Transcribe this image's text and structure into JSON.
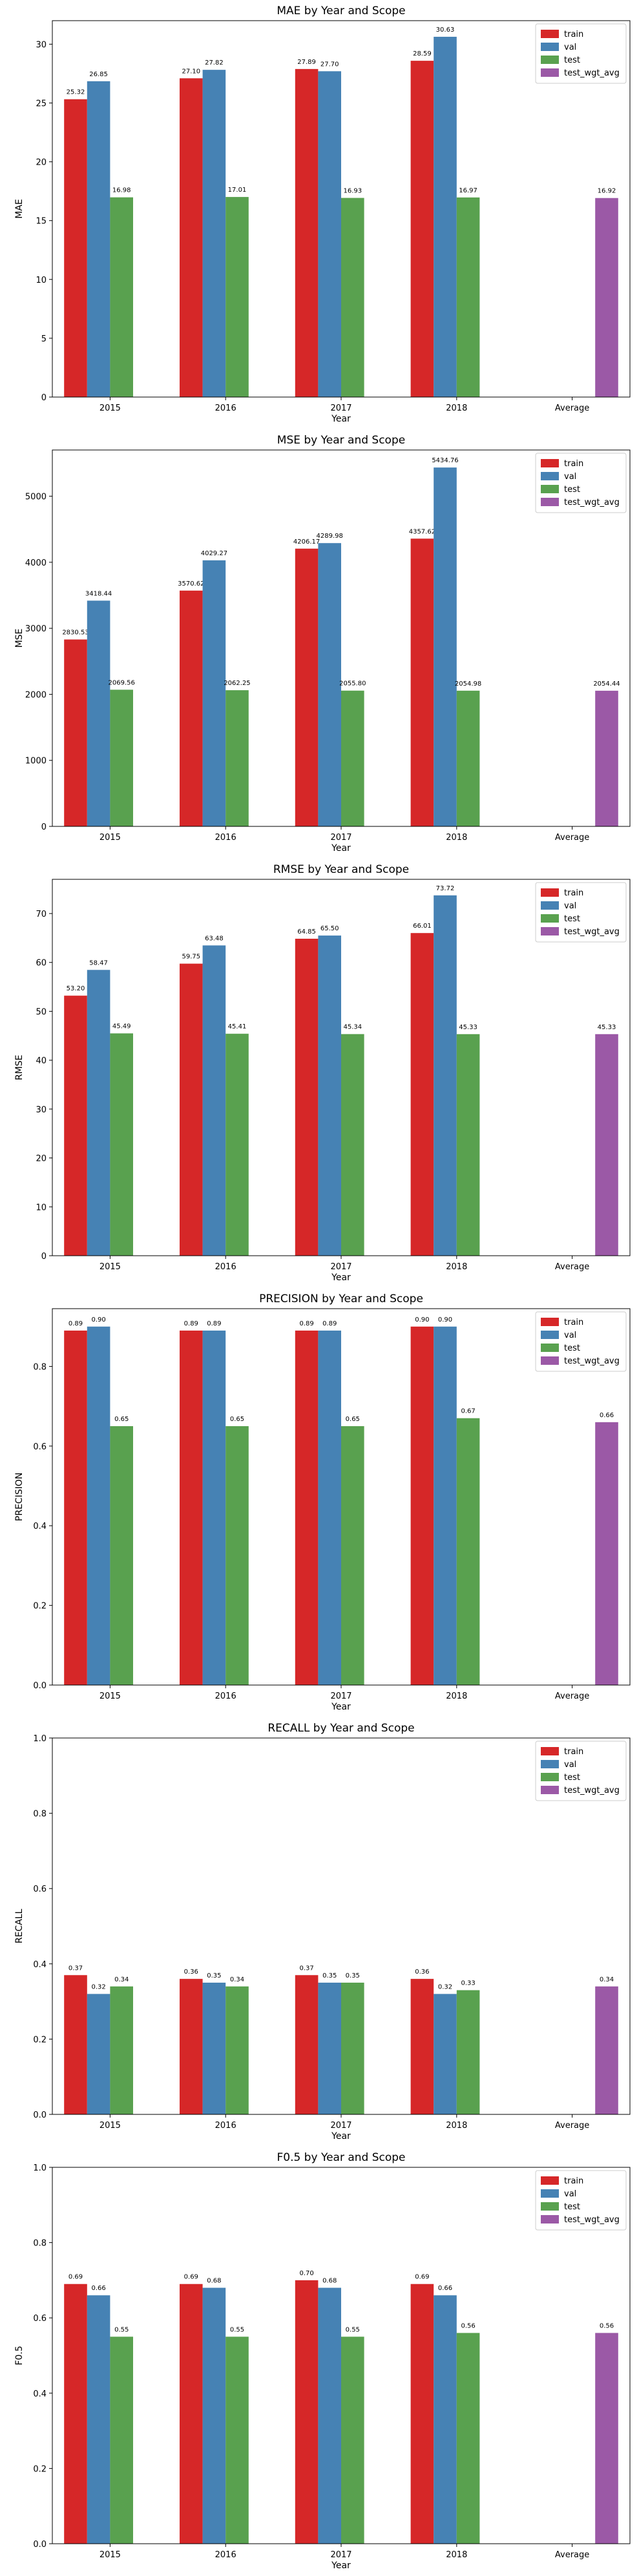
{
  "colors": {
    "train": "#d62728",
    "val": "#4682b4",
    "test": "#59a14f",
    "test_wgt_avg": "#9b59a6"
  },
  "chart_data": [
    {
      "type": "bar",
      "title": "MAE by Year and Scope",
      "xlabel": "Year",
      "ylabel": "MAE",
      "categories": [
        "2015",
        "2016",
        "2017",
        "2018",
        "Average"
      ],
      "ylim": [
        0,
        32
      ],
      "yticks": [
        0,
        5,
        10,
        15,
        20,
        25,
        30
      ],
      "yticklabels": [
        "0",
        "5",
        "10",
        "15",
        "20",
        "25",
        "30"
      ],
      "legend": "top-right",
      "series": [
        {
          "name": "train",
          "values": [
            25.32,
            27.1,
            27.89,
            28.59,
            null
          ],
          "labels": [
            "25.32",
            "27.10",
            "27.89",
            "28.59",
            ""
          ]
        },
        {
          "name": "val",
          "values": [
            26.85,
            27.82,
            27.7,
            30.63,
            null
          ],
          "labels": [
            "26.85",
            "27.82",
            "27.70",
            "30.63",
            ""
          ]
        },
        {
          "name": "test",
          "values": [
            16.98,
            17.01,
            16.93,
            16.97,
            null
          ],
          "labels": [
            "16.98",
            "17.01",
            "16.93",
            "16.97",
            ""
          ]
        },
        {
          "name": "test_wgt_avg",
          "values": [
            null,
            null,
            null,
            null,
            16.92
          ],
          "labels": [
            "",
            "",
            "",
            "",
            "16.92"
          ]
        }
      ]
    },
    {
      "type": "bar",
      "title": "MSE by Year and Scope",
      "xlabel": "Year",
      "ylabel": "MSE",
      "categories": [
        "2015",
        "2016",
        "2017",
        "2018",
        "Average"
      ],
      "ylim": [
        0,
        5700
      ],
      "yticks": [
        0,
        1000,
        2000,
        3000,
        4000,
        5000
      ],
      "yticklabels": [
        "0",
        "1000",
        "2000",
        "3000",
        "4000",
        "5000"
      ],
      "legend": "top-right",
      "series": [
        {
          "name": "train",
          "values": [
            2830.53,
            3570.62,
            4206.17,
            4357.62,
            null
          ],
          "labels": [
            "2830.53",
            "3570.62",
            "4206.17",
            "4357.62",
            ""
          ]
        },
        {
          "name": "val",
          "values": [
            3418.44,
            4029.27,
            4289.98,
            5434.76,
            null
          ],
          "labels": [
            "3418.44",
            "4029.27",
            "4289.98",
            "5434.76",
            ""
          ]
        },
        {
          "name": "test",
          "values": [
            2069.56,
            2062.25,
            2055.8,
            2054.98,
            null
          ],
          "labels": [
            "2069.56",
            "2062.25",
            "2055.80",
            "2054.98",
            ""
          ]
        },
        {
          "name": "test_wgt_avg",
          "values": [
            null,
            null,
            null,
            null,
            2054.44
          ],
          "labels": [
            "",
            "",
            "",
            "",
            "2054.44"
          ]
        }
      ]
    },
    {
      "type": "bar",
      "title": "RMSE by Year and Scope",
      "xlabel": "Year",
      "ylabel": "RMSE",
      "categories": [
        "2015",
        "2016",
        "2017",
        "2018",
        "Average"
      ],
      "ylim": [
        0,
        77
      ],
      "yticks": [
        0,
        10,
        20,
        30,
        40,
        50,
        60,
        70
      ],
      "yticklabels": [
        "0",
        "10",
        "20",
        "30",
        "40",
        "50",
        "60",
        "70"
      ],
      "legend": "top-right",
      "series": [
        {
          "name": "train",
          "values": [
            53.2,
            59.75,
            64.85,
            66.01,
            null
          ],
          "labels": [
            "53.20",
            "59.75",
            "64.85",
            "66.01",
            ""
          ]
        },
        {
          "name": "val",
          "values": [
            58.47,
            63.48,
            65.5,
            73.72,
            null
          ],
          "labels": [
            "58.47",
            "63.48",
            "65.50",
            "73.72",
            ""
          ]
        },
        {
          "name": "test",
          "values": [
            45.49,
            45.41,
            45.34,
            45.33,
            null
          ],
          "labels": [
            "45.49",
            "45.41",
            "45.34",
            "45.33",
            ""
          ]
        },
        {
          "name": "test_wgt_avg",
          "values": [
            null,
            null,
            null,
            null,
            45.33
          ],
          "labels": [
            "",
            "",
            "",
            "",
            "45.33"
          ]
        }
      ]
    },
    {
      "type": "bar",
      "title": "PRECISION by Year and Scope",
      "xlabel": "Year",
      "ylabel": "PRECISION",
      "categories": [
        "2015",
        "2016",
        "2017",
        "2018",
        "Average"
      ],
      "ylim": [
        0,
        0.945
      ],
      "yticks": [
        0,
        0.2,
        0.4,
        0.6,
        0.8
      ],
      "yticklabels": [
        "0.0",
        "0.2",
        "0.4",
        "0.6",
        "0.8"
      ],
      "legend": "top-right",
      "series": [
        {
          "name": "train",
          "values": [
            0.89,
            0.89,
            0.89,
            0.9,
            null
          ],
          "labels": [
            "0.89",
            "0.89",
            "0.89",
            "0.90",
            ""
          ]
        },
        {
          "name": "val",
          "values": [
            0.9,
            0.89,
            0.89,
            0.9,
            null
          ],
          "labels": [
            "0.90",
            "0.89",
            "0.89",
            "0.90",
            ""
          ]
        },
        {
          "name": "test",
          "values": [
            0.65,
            0.65,
            0.65,
            0.67,
            null
          ],
          "labels": [
            "0.65",
            "0.65",
            "0.65",
            "0.67",
            ""
          ]
        },
        {
          "name": "test_wgt_avg",
          "values": [
            null,
            null,
            null,
            null,
            0.66
          ],
          "labels": [
            "",
            "",
            "",
            "",
            "0.66"
          ]
        }
      ]
    },
    {
      "type": "bar",
      "title": "RECALL by Year and Scope",
      "xlabel": "Year",
      "ylabel": "RECALL",
      "categories": [
        "2015",
        "2016",
        "2017",
        "2018",
        "Average"
      ],
      "ylim": [
        0,
        1.0
      ],
      "yticks": [
        0,
        0.2,
        0.4,
        0.6,
        0.8,
        1.0
      ],
      "yticklabels": [
        "0.0",
        "0.2",
        "0.4",
        "0.6",
        "0.8",
        "1.0"
      ],
      "legend": "top-right",
      "series": [
        {
          "name": "train",
          "values": [
            0.37,
            0.36,
            0.37,
            0.36,
            null
          ],
          "labels": [
            "0.37",
            "0.36",
            "0.37",
            "0.36",
            ""
          ]
        },
        {
          "name": "val",
          "values": [
            0.32,
            0.35,
            0.35,
            0.32,
            null
          ],
          "labels": [
            "0.32",
            "0.35",
            "0.35",
            "0.32",
            ""
          ]
        },
        {
          "name": "test",
          "values": [
            0.34,
            0.34,
            0.35,
            0.33,
            null
          ],
          "labels": [
            "0.34",
            "0.34",
            "0.35",
            "0.33",
            ""
          ]
        },
        {
          "name": "test_wgt_avg",
          "values": [
            null,
            null,
            null,
            null,
            0.34
          ],
          "labels": [
            "",
            "",
            "",
            "",
            "0.34"
          ]
        }
      ]
    },
    {
      "type": "bar",
      "title": "F0.5 by Year and Scope",
      "xlabel": "Year",
      "ylabel": "F0.5",
      "categories": [
        "2015",
        "2016",
        "2017",
        "2018",
        "Average"
      ],
      "ylim": [
        0,
        1.0
      ],
      "yticks": [
        0,
        0.2,
        0.4,
        0.6,
        0.8,
        1.0
      ],
      "yticklabels": [
        "0.0",
        "0.2",
        "0.4",
        "0.6",
        "0.8",
        "1.0"
      ],
      "legend": "top-right",
      "series": [
        {
          "name": "train",
          "values": [
            0.69,
            0.69,
            0.7,
            0.69,
            null
          ],
          "labels": [
            "0.69",
            "0.69",
            "0.70",
            "0.69",
            ""
          ]
        },
        {
          "name": "val",
          "values": [
            0.66,
            0.68,
            0.68,
            0.66,
            null
          ],
          "labels": [
            "0.66",
            "0.68",
            "0.68",
            "0.66",
            ""
          ]
        },
        {
          "name": "test",
          "values": [
            0.55,
            0.55,
            0.55,
            0.56,
            null
          ],
          "labels": [
            "0.55",
            "0.55",
            "0.55",
            "0.56",
            ""
          ]
        },
        {
          "name": "test_wgt_avg",
          "values": [
            null,
            null,
            null,
            null,
            0.56
          ],
          "labels": [
            "",
            "",
            "",
            "",
            "0.56"
          ]
        }
      ]
    }
  ]
}
